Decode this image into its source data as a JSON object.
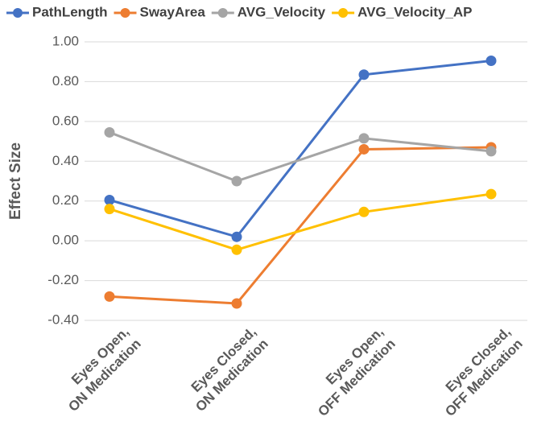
{
  "chart_data": {
    "type": "line",
    "y_label": "Effect Size",
    "categories": [
      [
        "Eyes Open,",
        "ON Medication"
      ],
      [
        "Eyes Closed,",
        "ON Medication"
      ],
      [
        "Eyes Open,",
        "OFF Medication"
      ],
      [
        "Eyes Closed,",
        "OFF Medication"
      ]
    ],
    "series": [
      {
        "name": "PathLength",
        "color": "#4472c4",
        "values": [
          0.205,
          0.02,
          0.835,
          0.905
        ]
      },
      {
        "name": "SwayArea",
        "color": "#ed7d31",
        "values": [
          -0.28,
          -0.315,
          0.46,
          0.47
        ]
      },
      {
        "name": "AVG_Velocity",
        "color": "#a5a5a5",
        "values": [
          0.545,
          0.3,
          0.515,
          0.45
        ]
      },
      {
        "name": "AVG_Velocity_AP",
        "color": "#ffc000",
        "values": [
          0.16,
          -0.045,
          0.145,
          0.235
        ]
      }
    ],
    "ylim": [
      -0.4,
      1.0
    ],
    "yticks": [
      {
        "value": -0.4,
        "label": "-0.40"
      },
      {
        "value": -0.2,
        "label": "-0.20"
      },
      {
        "value": 0,
        "label": "0.00"
      },
      {
        "value": 0.2,
        "label": "0.20"
      },
      {
        "value": 0.4,
        "label": "0.40"
      },
      {
        "value": 0.6,
        "label": "0.60"
      },
      {
        "value": 0.8,
        "label": "0.80"
      },
      {
        "value": 1.0,
        "label": "1.00"
      }
    ],
    "grid": true,
    "legend": "top"
  }
}
